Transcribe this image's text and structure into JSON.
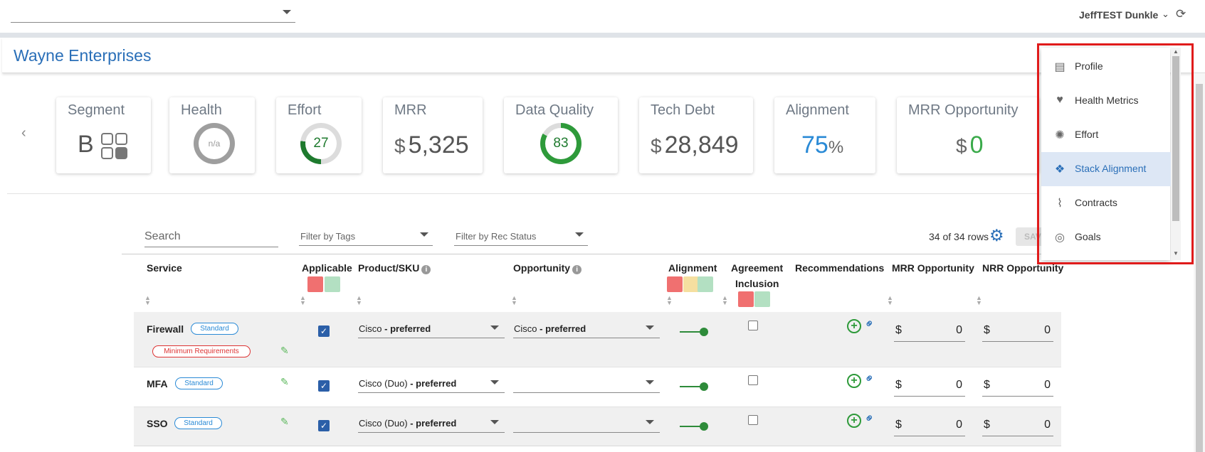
{
  "topbar": {
    "user_name": "JeffTEST Dunkle"
  },
  "company": {
    "name": "Wayne Enterprises"
  },
  "cards": {
    "segment": {
      "title": "Segment",
      "value": "B"
    },
    "health": {
      "title": "Health",
      "value": "n/a"
    },
    "effort": {
      "title": "Effort",
      "value": "27",
      "percent": 27
    },
    "mrr": {
      "title": "MRR",
      "currency": "$",
      "value": "5,325"
    },
    "data_quality": {
      "title": "Data Quality",
      "value": "83",
      "percent": 83
    },
    "tech_debt": {
      "title": "Tech Debt",
      "currency": "$",
      "value": "28,849"
    },
    "alignment": {
      "title": "Alignment",
      "value": "75",
      "unit": "%"
    },
    "mrr_opportunity": {
      "title": "MRR Opportunity",
      "currency": "$",
      "value": "0"
    }
  },
  "filters": {
    "search_placeholder": "Search",
    "tags_placeholder": "Filter by Tags",
    "rec_status_placeholder": "Filter by Rec Status",
    "row_count": "34 of 34 rows",
    "save_label": "SAVE"
  },
  "table": {
    "headers": {
      "service": "Service",
      "applicable": "Applicable",
      "product_sku": "Product/SKU",
      "opportunity": "Opportunity",
      "alignment": "Alignment",
      "agreement_line1": "Agreement",
      "agreement_line2": "Inclusion",
      "recommendations": "Recommendations",
      "mrr_opportunity": "MRR Opportunity",
      "nrr_opportunity": "NRR Opportunity"
    },
    "rows": [
      {
        "service": "Firewall",
        "badge": "Standard",
        "extra_badge": "Minimum Requirements",
        "applicable": true,
        "product": "Cisco",
        "product_suffix": " - preferred",
        "opportunity": "Cisco",
        "opportunity_suffix": " - preferred",
        "agreement": false,
        "mrr_currency": "$",
        "mrr": "0",
        "nrr_currency": "$",
        "nrr": "0"
      },
      {
        "service": "MFA",
        "badge": "Standard",
        "applicable": true,
        "product": "Cisco (Duo)",
        "product_suffix": " - preferred",
        "opportunity": "",
        "opportunity_suffix": "",
        "agreement": false,
        "mrr_currency": "$",
        "mrr": "0",
        "nrr_currency": "$",
        "nrr": "0"
      },
      {
        "service": "SSO",
        "badge": "Standard",
        "applicable": true,
        "product": "Cisco (Duo)",
        "product_suffix": " - preferred",
        "opportunity": "",
        "opportunity_suffix": "",
        "agreement": false,
        "mrr_currency": "$",
        "mrr": "0",
        "nrr_currency": "$",
        "nrr": "0"
      }
    ]
  },
  "menu": {
    "items": [
      {
        "label": "Profile",
        "icon": "id-card-icon"
      },
      {
        "label": "Health Metrics",
        "icon": "heartbeat-icon"
      },
      {
        "label": "Effort",
        "icon": "rebel-icon"
      },
      {
        "label": "Stack Alignment",
        "icon": "cubes-icon",
        "active": true
      },
      {
        "label": "Contracts",
        "icon": "paperclip-icon"
      },
      {
        "label": "Goals",
        "icon": "target-icon"
      }
    ]
  },
  "colors": {
    "accent": "#2a6fb8",
    "highlight": "#e01b1b",
    "green": "#2e9a3a",
    "red_chip": "#f07070",
    "yellow_chip": "#f5dfa0",
    "green_chip": "#b3e0c2"
  }
}
